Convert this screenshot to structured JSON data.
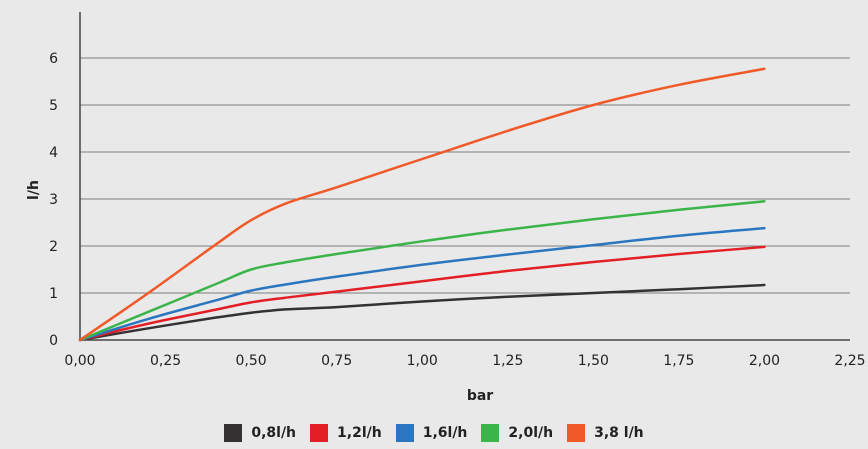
{
  "chart_data": {
    "type": "line",
    "xlabel": "bar",
    "ylabel": "l/h",
    "xlim": [
      0,
      2.25
    ],
    "ylim": [
      0,
      7
    ],
    "x_ticks": [
      "0,00",
      "0,25",
      "0,50",
      "0,75",
      "1,00",
      "1,25",
      "1,50",
      "1,75",
      "2,00",
      "2,25"
    ],
    "y_ticks": [
      "0",
      "1",
      "2",
      "3",
      "4",
      "5",
      "6"
    ],
    "grid": "horizontal",
    "legend_position": "bottom",
    "series": [
      {
        "name": "0,8l/h",
        "color": "#333132",
        "x": [
          0,
          0.2,
          0.4,
          0.5,
          0.6,
          0.75,
          1.0,
          1.25,
          1.5,
          1.75,
          2.0
        ],
        "y": [
          0,
          0.25,
          0.48,
          0.58,
          0.65,
          0.7,
          0.82,
          0.92,
          1.0,
          1.08,
          1.17
        ]
      },
      {
        "name": "1,2l/h",
        "color": "#e31f26",
        "x": [
          0,
          0.2,
          0.4,
          0.5,
          0.6,
          0.75,
          1.0,
          1.25,
          1.5,
          1.75,
          2.0
        ],
        "y": [
          0,
          0.35,
          0.65,
          0.8,
          0.9,
          1.03,
          1.25,
          1.47,
          1.66,
          1.83,
          1.98
        ]
      },
      {
        "name": "1,6l/h",
        "color": "#2a77c0",
        "x": [
          0,
          0.2,
          0.4,
          0.5,
          0.6,
          0.75,
          1.0,
          1.25,
          1.5,
          1.75,
          2.0
        ],
        "y": [
          0,
          0.45,
          0.85,
          1.05,
          1.18,
          1.35,
          1.6,
          1.82,
          2.02,
          2.22,
          2.38
        ]
      },
      {
        "name": "2,0l/h",
        "color": "#3bb54a",
        "x": [
          0,
          0.2,
          0.4,
          0.5,
          0.6,
          0.75,
          1.0,
          1.25,
          1.5,
          1.75,
          2.0
        ],
        "y": [
          0,
          0.6,
          1.2,
          1.5,
          1.65,
          1.83,
          2.1,
          2.35,
          2.57,
          2.77,
          2.95
        ]
      },
      {
        "name": "3,8 l/h",
        "color": "#f05a28",
        "x": [
          0,
          0.2,
          0.4,
          0.5,
          0.6,
          0.75,
          1.0,
          1.25,
          1.5,
          1.75,
          2.0
        ],
        "y": [
          0,
          1.0,
          2.05,
          2.55,
          2.9,
          3.25,
          3.85,
          4.45,
          5.0,
          5.43,
          5.77
        ]
      }
    ]
  }
}
